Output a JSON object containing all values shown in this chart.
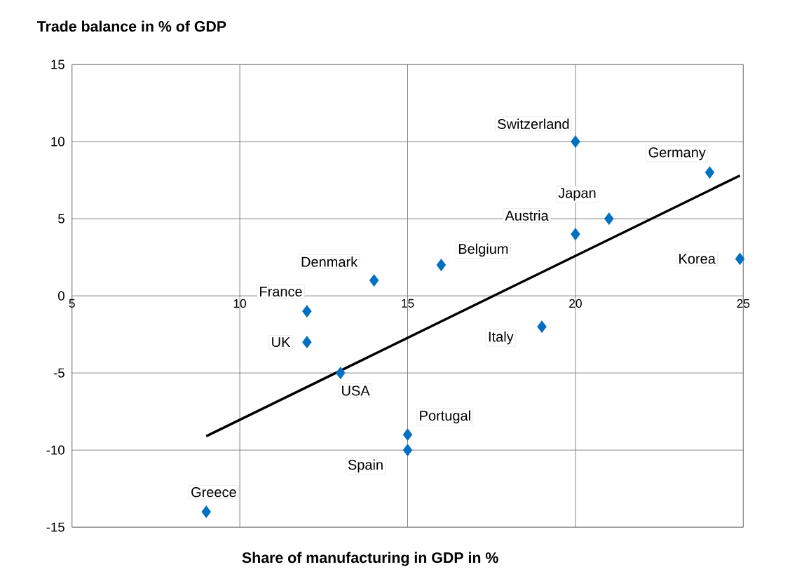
{
  "chart_data": {
    "type": "scatter",
    "title": "Trade balance in % of GDP",
    "xlabel": "Share of manufacturing in GDP in %",
    "xlim": [
      5,
      25
    ],
    "ylim": [
      -15,
      15
    ],
    "xticks": [
      5,
      10,
      15,
      20,
      25
    ],
    "yticks": [
      -15,
      -10,
      -5,
      0,
      5,
      10,
      15
    ],
    "grid": true,
    "marker": "diamond",
    "series": [
      {
        "color": "#0070c0",
        "x": [
          20,
          24,
          21,
          20,
          24.9,
          16,
          14,
          12,
          12,
          19,
          13,
          15,
          15,
          9
        ],
        "values": [
          10,
          8,
          5,
          4,
          2.4,
          2,
          1,
          -1,
          -3,
          -2,
          -5,
          -9,
          -10,
          -14
        ]
      },
      {
        "type": "line",
        "color": "#000000",
        "marker": "none",
        "x": [
          9,
          24.9
        ],
        "values": [
          -9.1,
          7.8
        ]
      }
    ],
    "annotations": [
      {
        "text": "Switzerland",
        "x": 20,
        "y": 10
      },
      {
        "text": "Germany",
        "x": 24,
        "y": 8
      },
      {
        "text": "Japan",
        "x": 21,
        "y": 5
      },
      {
        "text": "Austria",
        "x": 20,
        "y": 4
      },
      {
        "text": "Korea",
        "x": 24.9,
        "y": 2.4
      },
      {
        "text": "Belgium",
        "x": 16,
        "y": 2
      },
      {
        "text": "Denmark",
        "x": 14,
        "y": 1
      },
      {
        "text": "France",
        "x": 12,
        "y": -1
      },
      {
        "text": "UK",
        "x": 12,
        "y": -3
      },
      {
        "text": "Italy",
        "x": 19,
        "y": -2
      },
      {
        "text": "USA",
        "x": 13,
        "y": -5
      },
      {
        "text": "Portugal",
        "x": 15,
        "y": -9
      },
      {
        "text": "Spain",
        "x": 15,
        "y": -10
      },
      {
        "text": "Greece",
        "x": 9,
        "y": -14
      }
    ]
  }
}
